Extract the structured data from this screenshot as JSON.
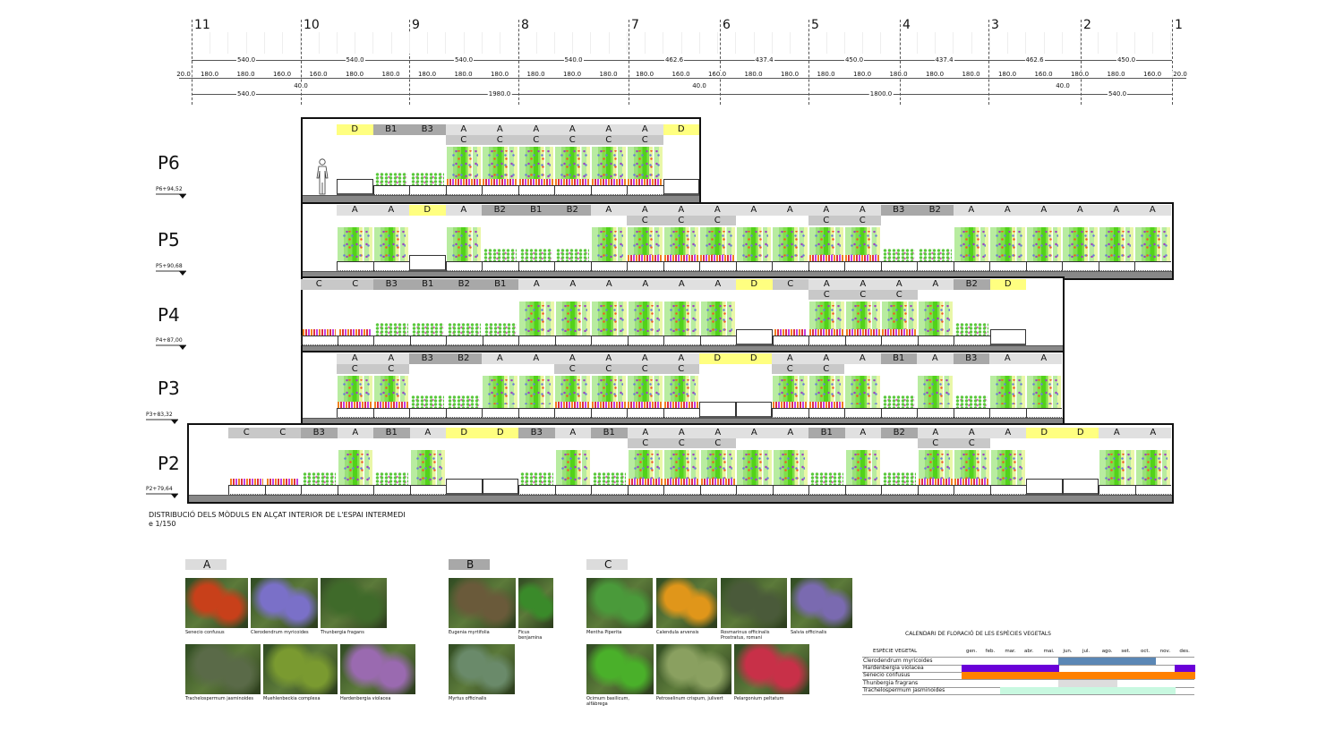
{
  "grid_axes": [
    "11",
    "10",
    "9",
    "8",
    "7",
    "6",
    "5",
    "4",
    "3",
    "2",
    "1"
  ],
  "dimensions": {
    "top": [
      "540.0",
      "540.0",
      "540.0",
      "540.0",
      "462.6",
      "437.4",
      "450.0",
      "437.4",
      "462.6",
      "450.0"
    ],
    "middle_edge": "20.0",
    "middle": [
      "180.0",
      "180.0",
      "160.0",
      "160.0",
      "180.0",
      "180.0",
      "180.0",
      "180.0",
      "180.0",
      "180.0",
      "180.0",
      "180.0",
      "180.0",
      "160.0",
      "160.0",
      "180.0",
      "180.0",
      "180.0",
      "180.0",
      "180.0",
      "180.0",
      "180.0",
      "180.0",
      "160.0",
      "180.0",
      "180.0",
      "160.0"
    ],
    "gap": "40.0",
    "bottom": [
      "540.0",
      "1980.0",
      "1800.0",
      "540.0"
    ]
  },
  "module_colors": {
    "A": "#e0e0e0",
    "B1": "#a8a8a8",
    "B2": "#a8a8a8",
    "B3": "#a8a8a8",
    "C": "#c8c8c8",
    "D": "#ffff80"
  },
  "floors": [
    {
      "name": "P6",
      "level": "P6+94,52",
      "modules": [
        "D",
        "B1",
        "B3",
        "A",
        "A",
        "A",
        "A",
        "A",
        "A",
        "D"
      ],
      "sub": [
        "",
        "",
        "",
        "C",
        "C",
        "C",
        "C",
        "C",
        "C",
        ""
      ]
    },
    {
      "name": "P5",
      "level": "P5+90,68",
      "modules": [
        "A",
        "A",
        "D",
        "A",
        "B2",
        "B1",
        "B2",
        "A",
        "A",
        "A",
        "A",
        "A",
        "A",
        "A",
        "A",
        "B3",
        "B2",
        "A",
        "A",
        "A",
        "A",
        "A",
        "A"
      ],
      "sub": [
        "",
        "",
        "",
        "",
        "",
        "",
        "",
        "",
        "C",
        "C",
        "C",
        "",
        "",
        "C",
        "C",
        "",
        "",
        "",
        "",
        "",
        "",
        "",
        ""
      ]
    },
    {
      "name": "P4",
      "level": "P4+87,00",
      "modules": [
        "C",
        "C",
        "B3",
        "B1",
        "B2",
        "B1",
        "A",
        "A",
        "A",
        "A",
        "A",
        "A",
        "D",
        "C",
        "A",
        "A",
        "A",
        "A",
        "B2",
        "D"
      ],
      "sub": [
        "",
        "",
        "",
        "",
        "",
        "",
        "",
        "",
        "",
        "",
        "",
        "",
        "",
        "",
        "C",
        "C",
        "C",
        "",
        "",
        ""
      ]
    },
    {
      "name": "P3",
      "level": "P3+83,32",
      "modules": [
        "A",
        "A",
        "B3",
        "B2",
        "A",
        "A",
        "A",
        "A",
        "A",
        "A",
        "D",
        "D",
        "A",
        "A",
        "A",
        "B1",
        "A",
        "B3",
        "A",
        "A"
      ],
      "sub": [
        "C",
        "C",
        "",
        "",
        "",
        "",
        "C",
        "C",
        "C",
        "C",
        "",
        "",
        "C",
        "C",
        "",
        "",
        "",
        "",
        "",
        ""
      ]
    },
    {
      "name": "P2",
      "level": "P2+79,64",
      "modules": [
        "C",
        "C",
        "B3",
        "A",
        "B1",
        "A",
        "D",
        "D",
        "B3",
        "A",
        "B1",
        "A",
        "A",
        "A",
        "A",
        "A",
        "B1",
        "A",
        "B2",
        "A",
        "A",
        "A",
        "D",
        "D",
        "A",
        "A"
      ],
      "sub": [
        "",
        "",
        "",
        "",
        "",
        "",
        "",
        "",
        "",
        "",
        "",
        "C",
        "C",
        "C",
        "",
        "",
        "",
        "",
        "",
        "C",
        "C",
        "",
        "",
        "",
        "",
        ""
      ]
    }
  ],
  "title": {
    "line1": "DISTRIBUCIÓ DELS MÒDULS EN ALÇAT INTERIOR DE L'ESPAI INTERMEDI",
    "line2": "e 1/150"
  },
  "plant_groups": [
    {
      "label": "A",
      "photos": [
        {
          "caption": "Senecio confusus",
          "color": "#c8401a"
        },
        {
          "caption": "Clerodendrum myricoides",
          "color": "#7a70c8"
        },
        {
          "caption": "Thunbergia fragans",
          "color": "#3f6a2a"
        },
        {
          "caption": "Trachelospermum jasminoides",
          "color": "#5a6a48"
        },
        {
          "caption": "Muehlenbeckia complexa",
          "color": "#7a9a30"
        },
        {
          "caption": "Hardenbergia violacea",
          "color": "#9a6ab0"
        }
      ]
    },
    {
      "label": "B",
      "photos": [
        {
          "caption": "Eugenia myrtifolia",
          "color": "#6a5a3a"
        },
        {
          "caption": "Ficus benjamina",
          "color": "#3a8a2a"
        },
        {
          "caption": "Myrtus officinalis",
          "color": "#6a8a6a"
        }
      ]
    },
    {
      "label": "C",
      "photos": [
        {
          "caption": "Mentha Piperita",
          "color": "#4a9a3a"
        },
        {
          "caption": "Calendula arvensis",
          "color": "#e0961a"
        },
        {
          "caption": "Rosmarinus officinalis Prostratus, romaní",
          "color": "#4a5a3a"
        },
        {
          "caption": "Salvia officinalis",
          "color": "#7a6ab0"
        },
        {
          "caption": "Ocimum basilicum, alfàbrega",
          "color": "#4ab02a"
        },
        {
          "caption": "Petroselinum crispum, julivert",
          "color": "#8aa060"
        },
        {
          "caption": "Pelargonium peltatum",
          "color": "#c83048"
        }
      ]
    }
  ],
  "calendar": {
    "title": "CALENDARI DE FLORACIÓ DE LES ESPÈCIES VEGETALS",
    "header": "ESPÈCIE VEGETAL",
    "months": [
      "gen.",
      "feb.",
      "mar.",
      "abr.",
      "mai.",
      "jun.",
      "jul.",
      "ago.",
      "set.",
      "oct.",
      "nov.",
      "des."
    ],
    "rows": [
      {
        "species": "Clerodendrum myricoides",
        "color": "#5b87b5",
        "months": [
          6,
          7,
          8,
          9,
          10
        ]
      },
      {
        "species": "Hardenbergia violacea",
        "color": "#6a00d8",
        "months": [
          1,
          2,
          3,
          4,
          5,
          12
        ]
      },
      {
        "species": "Senecio confusus",
        "color": "#ff8000",
        "months": [
          1,
          2,
          3,
          4,
          5,
          6,
          7,
          8,
          9,
          10,
          11,
          12
        ]
      },
      {
        "species": "Thunbergia fragrans",
        "color": "#dddddd",
        "months": [
          6,
          7,
          8
        ]
      },
      {
        "species": "Trachelospermum jasminoides",
        "color": "#c8f8e0",
        "months": [
          3,
          4,
          5,
          6,
          7,
          8,
          9,
          10,
          11
        ]
      }
    ]
  }
}
